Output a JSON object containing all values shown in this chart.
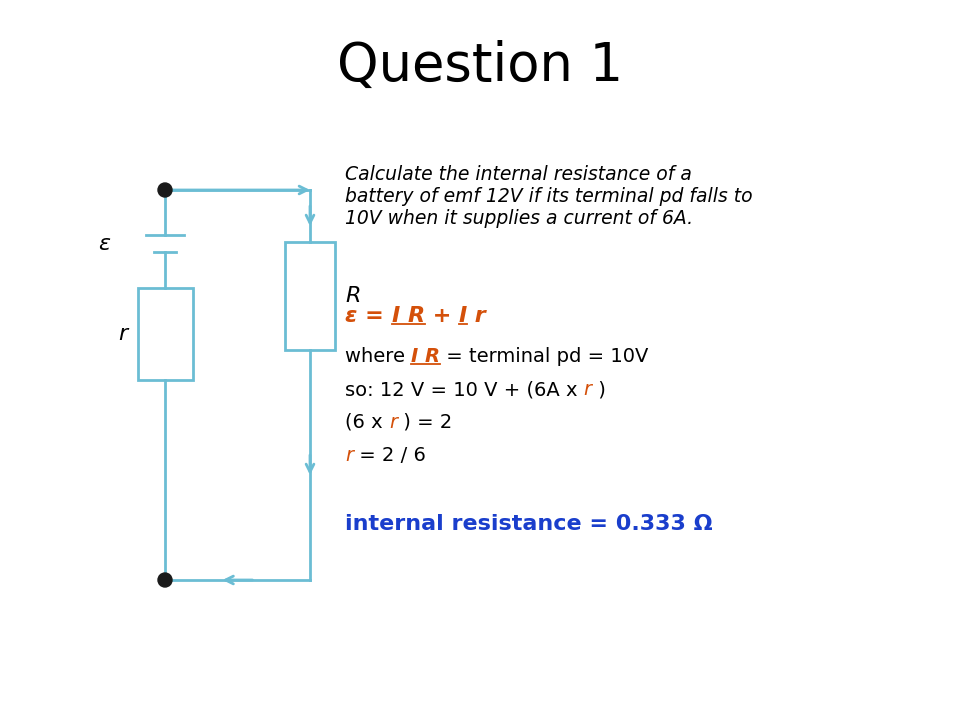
{
  "title": "Question 1",
  "title_fontsize": 38,
  "bg_color": "#ffffff",
  "question_text_line1": "Calculate the internal resistance of a",
  "question_text_line2": "battery of emf 12V if its terminal pd falls to",
  "question_text_line3": "10V when it supplies a current of 6A.",
  "question_fontsize": 13.5,
  "circuit_color": "#6bbdd4",
  "dot_color": "#1a1a1a",
  "red_color": "#d4500a",
  "blue_color": "#1a3ecc",
  "text_color": "#000000",
  "final_fontsize": 16,
  "epsilon_label": "ε",
  "r_label": "r",
  "R_label": "R",
  "final_line": "internal resistance = 0.333 Ω"
}
